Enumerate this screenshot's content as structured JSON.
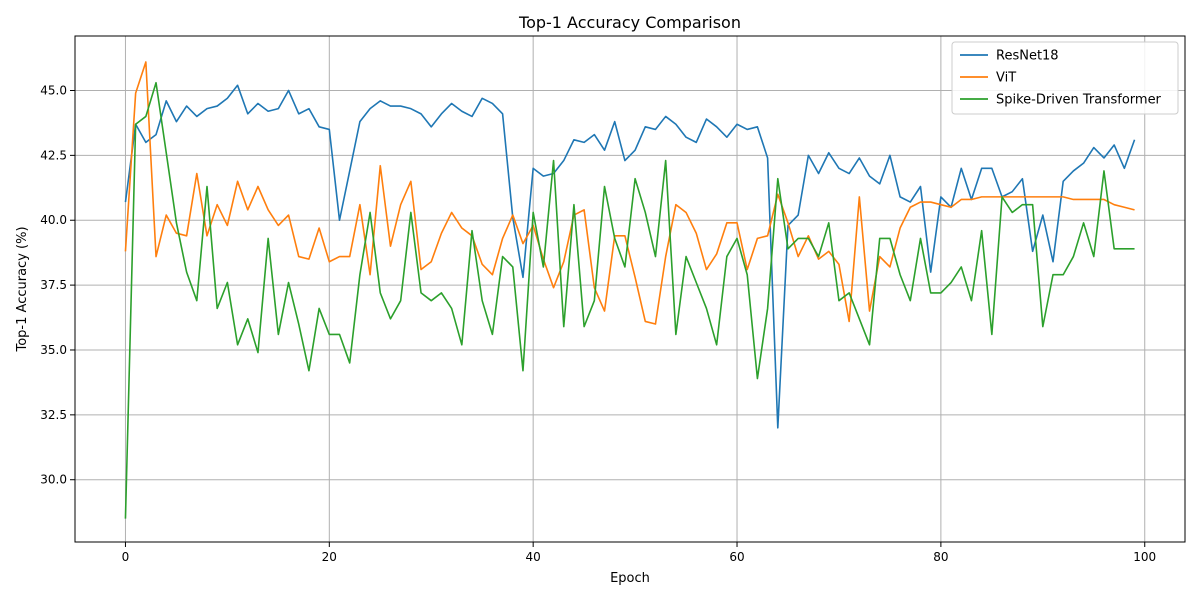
{
  "chart_data": {
    "type": "line",
    "title": "Top-1 Accuracy Comparison",
    "xlabel": "Epoch",
    "ylabel": "Top-1 Accuracy (%)",
    "xlim": [
      -4.95,
      103.95
    ],
    "ylim": [
      27.6,
      47.1
    ],
    "xticks": [
      0,
      20,
      40,
      60,
      80,
      100
    ],
    "yticks": [
      30.0,
      32.5,
      35.0,
      37.5,
      40.0,
      42.5,
      45.0
    ],
    "xtick_labels": [
      "0",
      "20",
      "40",
      "60",
      "80",
      "100"
    ],
    "ytick_labels": [
      "30.0",
      "32.5",
      "35.0",
      "37.5",
      "40.0",
      "42.5",
      "45.0"
    ],
    "grid": true,
    "legend_position": "top-right",
    "series": [
      {
        "name": "ResNet18",
        "color": "#1f77b4",
        "values": [
          40.7,
          43.7,
          43.0,
          43.3,
          44.6,
          43.8,
          44.4,
          44.0,
          44.3,
          44.4,
          44.7,
          45.2,
          44.1,
          44.5,
          44.2,
          44.3,
          45.0,
          44.1,
          44.3,
          43.6,
          43.5,
          40.0,
          41.9,
          43.8,
          44.3,
          44.6,
          44.4,
          44.4,
          44.3,
          44.1,
          43.6,
          44.1,
          44.5,
          44.2,
          44.0,
          44.7,
          44.5,
          44.1,
          40.1,
          37.8,
          42.0,
          41.7,
          41.8,
          42.3,
          43.1,
          43.0,
          43.3,
          42.7,
          43.8,
          42.3,
          42.7,
          43.6,
          43.5,
          44.0,
          43.7,
          43.2,
          43.0,
          43.9,
          43.6,
          43.2,
          43.7,
          43.5,
          43.6,
          42.4,
          32.0,
          39.8,
          40.2,
          42.5,
          41.8,
          42.6,
          42.0,
          41.8,
          42.4,
          41.7,
          41.4,
          42.5,
          40.9,
          40.7,
          41.3,
          38.0,
          40.9,
          40.5,
          42.0,
          40.8,
          42.0,
          42.0,
          40.9,
          41.1,
          41.6,
          38.8,
          40.2,
          38.4,
          41.5,
          41.9,
          42.2,
          42.8,
          42.4,
          42.9,
          42.0,
          43.1
        ]
      },
      {
        "name": "ViT",
        "color": "#ff7f0e",
        "values": [
          38.8,
          44.9,
          46.1,
          38.6,
          40.2,
          39.5,
          39.4,
          41.8,
          39.4,
          40.6,
          39.8,
          41.5,
          40.4,
          41.3,
          40.4,
          39.8,
          40.2,
          38.6,
          38.5,
          39.7,
          38.4,
          38.6,
          38.6,
          40.6,
          37.9,
          42.1,
          39.0,
          40.6,
          41.5,
          38.1,
          38.4,
          39.5,
          40.3,
          39.7,
          39.4,
          38.3,
          37.9,
          39.3,
          40.2,
          39.1,
          39.8,
          38.5,
          37.4,
          38.4,
          40.2,
          40.4,
          37.4,
          36.5,
          39.4,
          39.4,
          37.8,
          36.1,
          36.0,
          38.6,
          40.6,
          40.3,
          39.5,
          38.1,
          38.7,
          39.9,
          39.9,
          38.1,
          39.3,
          39.4,
          41.0,
          39.9,
          38.6,
          39.4,
          38.5,
          38.8,
          38.3,
          36.1,
          40.9,
          36.5,
          38.6,
          38.2,
          39.7,
          40.5,
          40.7,
          40.7,
          40.6,
          40.5,
          40.8,
          40.8,
          40.9,
          40.9,
          40.9,
          40.9,
          40.9,
          40.9,
          40.9,
          40.9,
          40.9,
          40.8,
          40.8,
          40.8,
          40.8,
          40.6,
          40.5,
          40.4
        ]
      },
      {
        "name": "Spike-Driven Transformer",
        "color": "#2ca02c",
        "values": [
          28.5,
          43.7,
          44.0,
          45.3,
          42.6,
          39.9,
          38.0,
          36.9,
          41.3,
          36.6,
          37.6,
          35.2,
          36.2,
          34.9,
          39.3,
          35.6,
          37.6,
          36.0,
          34.2,
          36.6,
          35.6,
          35.6,
          34.5,
          37.9,
          40.3,
          37.2,
          36.2,
          36.9,
          40.3,
          37.2,
          36.9,
          37.2,
          36.6,
          35.2,
          39.6,
          36.9,
          35.6,
          38.6,
          38.2,
          34.2,
          40.3,
          38.2,
          42.3,
          35.9,
          40.6,
          35.9,
          36.9,
          41.3,
          39.3,
          38.2,
          41.6,
          40.3,
          38.6,
          42.3,
          35.6,
          38.6,
          37.6,
          36.6,
          35.2,
          38.6,
          39.3,
          37.9,
          33.9,
          36.6,
          41.6,
          38.9,
          39.3,
          39.3,
          38.6,
          39.9,
          36.9,
          37.2,
          36.2,
          35.2,
          39.3,
          39.3,
          37.9,
          36.9,
          39.3,
          37.2,
          37.2,
          37.6,
          38.2,
          36.9,
          39.6,
          35.6,
          40.9,
          40.3,
          40.6,
          40.6,
          35.9,
          37.9,
          37.9,
          38.6,
          39.9,
          38.6,
          41.9,
          38.9,
          38.9,
          38.9
        ]
      }
    ]
  }
}
